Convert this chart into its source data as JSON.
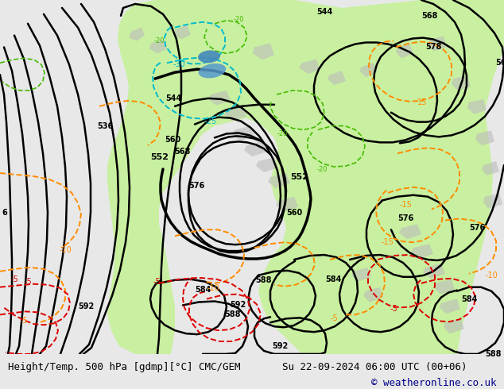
{
  "title_left": "Height/Temp. 500 hPa [gdmp][°C] CMC/GEM",
  "title_right": "Su 22-09-2024 06:00 UTC (00+06)",
  "copyright": "© weatheronline.co.uk",
  "fig_width": 6.34,
  "fig_height": 4.9,
  "dpi": 100,
  "bg_color": "#e8e8e8",
  "map_bg": "#e8e8e8",
  "green_fill": "#c8f0a0",
  "bottom_bar_color": "#e8e8e8",
  "bottom_text_color": "#000000",
  "copyright_color": "#00008b",
  "title_fontsize": 9.0,
  "copyright_fontsize": 9.0,
  "black": "#000000",
  "red": "#dd0000",
  "orange": "#ff8c00",
  "cyan": "#00bbcc",
  "green_label": "#44bb00",
  "gray": "#aaaaaa"
}
